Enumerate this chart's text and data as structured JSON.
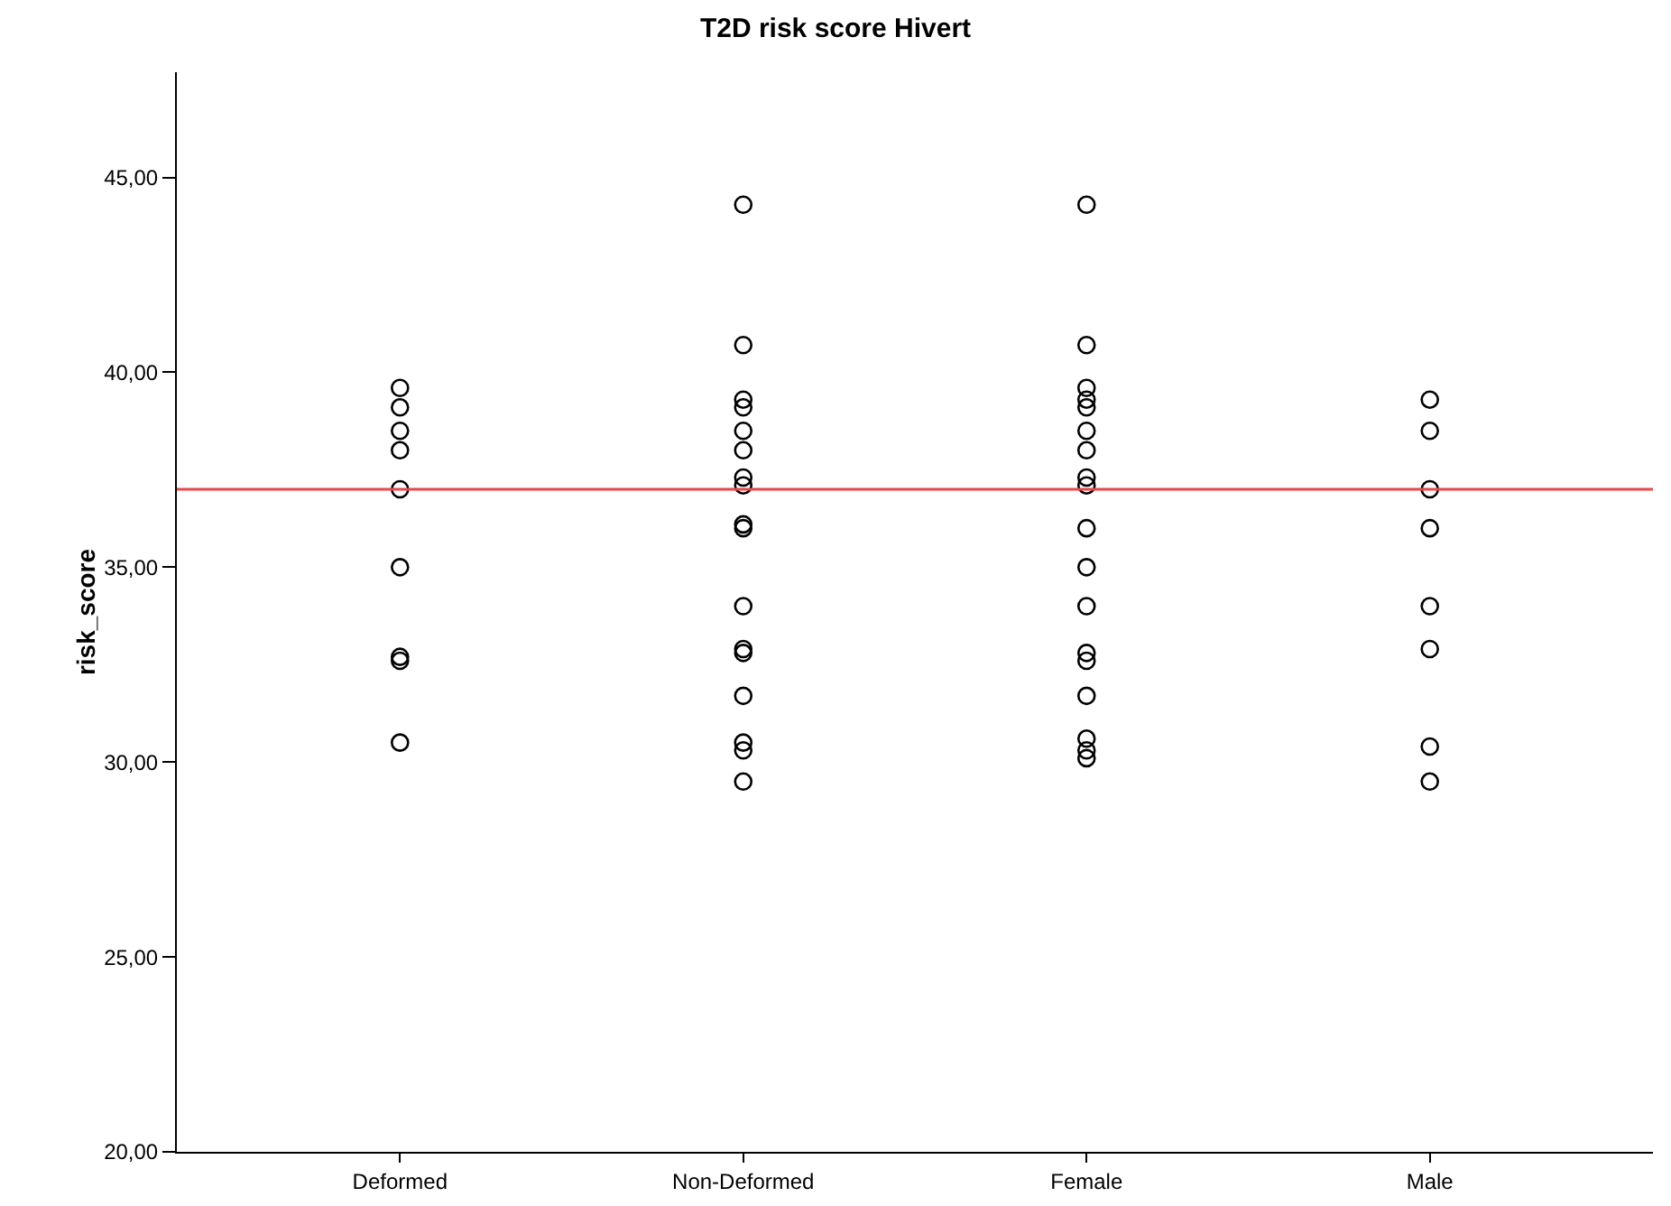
{
  "chart_data": {
    "type": "scatter",
    "title": "T2D risk score Hivert",
    "ylabel": "risk_score",
    "categories": [
      "Deformed",
      "Non-Deformed",
      "Female",
      "Male"
    ],
    "series": [
      {
        "color": "#000000",
        "x": [
          "Deformed",
          "Deformed",
          "Deformed",
          "Deformed",
          "Deformed",
          "Deformed",
          "Deformed",
          "Deformed",
          "Deformed"
        ],
        "values": [
          39.6,
          39.1,
          38.5,
          38.0,
          37.0,
          35.0,
          32.7,
          32.6,
          30.5
        ]
      },
      {
        "color": "#000000",
        "x": [
          "Non-Deformed",
          "Non-Deformed",
          "Non-Deformed",
          "Non-Deformed",
          "Non-Deformed",
          "Non-Deformed",
          "Non-Deformed",
          "Non-Deformed",
          "Non-Deformed",
          "Non-Deformed",
          "Non-Deformed",
          "Non-Deformed",
          "Non-Deformed",
          "Non-Deformed",
          "Non-Deformed",
          "Non-Deformed",
          "Non-Deformed"
        ],
        "values": [
          44.3,
          40.7,
          39.3,
          39.1,
          38.5,
          38.0,
          37.3,
          37.1,
          36.0,
          36.1,
          34.0,
          32.9,
          32.8,
          31.7,
          30.5,
          30.3,
          29.5
        ]
      },
      {
        "color": "#000000",
        "x": [
          "Female",
          "Female",
          "Female",
          "Female",
          "Female",
          "Female",
          "Female",
          "Female",
          "Female",
          "Female",
          "Female",
          "Female",
          "Female",
          "Female",
          "Female",
          "Female",
          "Female",
          "Female"
        ],
        "values": [
          44.3,
          40.7,
          39.6,
          39.3,
          39.1,
          38.5,
          38.0,
          37.3,
          37.1,
          36.0,
          35.0,
          34.0,
          32.8,
          32.6,
          31.7,
          30.6,
          30.3,
          30.1
        ]
      },
      {
        "color": "#000000",
        "x": [
          "Male",
          "Male",
          "Male",
          "Male",
          "Male",
          "Male",
          "Male",
          "Male"
        ],
        "values": [
          39.3,
          38.5,
          37.0,
          36.0,
          34.0,
          32.9,
          30.4,
          29.5
        ]
      }
    ],
    "ylim": [
      20,
      47.7
    ],
    "yticks": [
      {
        "value": 20,
        "label": "20,00"
      },
      {
        "value": 25,
        "label": "25,00"
      },
      {
        "value": 30,
        "label": "30,00"
      },
      {
        "value": 35,
        "label": "35,00"
      },
      {
        "value": 40,
        "label": "40,00"
      },
      {
        "value": 45,
        "label": "45,00"
      }
    ],
    "ref_lines": [
      {
        "axis": "y",
        "value": 37.0,
        "color": "#e8474c"
      }
    ],
    "grid": false,
    "marker": "circle"
  }
}
